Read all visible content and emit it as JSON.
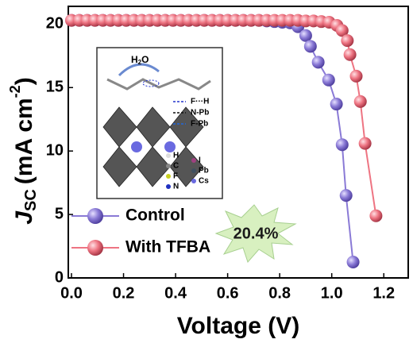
{
  "chart_data": {
    "type": "line",
    "x_label": "Voltage (V)",
    "y_label": {
      "main": "J",
      "sub": "SC",
      "unit": "(mA cm",
      "sup": "-2",
      "close": ")"
    },
    "xlim": [
      0,
      1.3
    ],
    "ylim": [
      0,
      21.4
    ],
    "xticks": [
      {
        "value": 0,
        "label": "0.0"
      },
      0.2,
      0.4,
      0.6,
      0.8,
      {
        "value": 1,
        "label": "1.0"
      },
      1.2
    ],
    "yticks": [
      0,
      5,
      10,
      15,
      20
    ],
    "legend": "lower left",
    "series": [
      {
        "name": "Control",
        "color": "#8a7ad6",
        "x": [
          0,
          0.03,
          0.06,
          0.09,
          0.12,
          0.15,
          0.18,
          0.21,
          0.24,
          0.27,
          0.3,
          0.33,
          0.36,
          0.39,
          0.42,
          0.45,
          0.48,
          0.51,
          0.54,
          0.57,
          0.6,
          0.63,
          0.66,
          0.69,
          0.72,
          0.75,
          0.78,
          0.81,
          0.84,
          0.87,
          0.9,
          0.918,
          0.948,
          0.988,
          1.018,
          1.04,
          1.055,
          1.082
        ],
        "values": [
          20.3,
          20.3,
          20.3,
          20.3,
          20.3,
          20.3,
          20.3,
          20.3,
          20.3,
          20.3,
          20.3,
          20.3,
          20.3,
          20.3,
          20.3,
          20.3,
          20.3,
          20.3,
          20.3,
          20.3,
          20.3,
          20.3,
          20.3,
          20.3,
          20.3,
          20.25,
          20.2,
          20.15,
          20.1,
          19.8,
          19.1,
          18.25,
          17.0,
          15.6,
          13.7,
          10.5,
          6.5,
          1.25
        ]
      },
      {
        "name": "With TFBA",
        "color": "#ee7482",
        "x": [
          0,
          0.03,
          0.06,
          0.09,
          0.12,
          0.15,
          0.18,
          0.21,
          0.24,
          0.27,
          0.3,
          0.33,
          0.36,
          0.39,
          0.42,
          0.45,
          0.48,
          0.51,
          0.54,
          0.57,
          0.6,
          0.63,
          0.66,
          0.69,
          0.72,
          0.75,
          0.78,
          0.81,
          0.84,
          0.87,
          0.9,
          0.93,
          0.96,
          0.99,
          1.02,
          1.04,
          1.06,
          1.07,
          1.094,
          1.11,
          1.128,
          1.17
        ],
        "values": [
          20.3,
          20.3,
          20.3,
          20.3,
          20.3,
          20.3,
          20.3,
          20.3,
          20.3,
          20.3,
          20.3,
          20.3,
          20.3,
          20.3,
          20.3,
          20.3,
          20.3,
          20.3,
          20.3,
          20.3,
          20.3,
          20.3,
          20.3,
          20.3,
          20.3,
          20.3,
          20.3,
          20.3,
          20.3,
          20.3,
          20.25,
          20.25,
          20.2,
          20.15,
          19.9,
          19.5,
          18.7,
          17.6,
          15.9,
          13.9,
          10.6,
          4.9
        ]
      }
    ],
    "annotation": "20.4%",
    "inset": {
      "water": {
        "main": "H",
        "sub": "2",
        "end": "O"
      },
      "bonds": [
        "F···H",
        "N-Pb",
        "F-Pb"
      ],
      "atoms": [
        "H",
        "C",
        "F",
        "N",
        "I",
        "Pb",
        "Cs"
      ]
    }
  }
}
